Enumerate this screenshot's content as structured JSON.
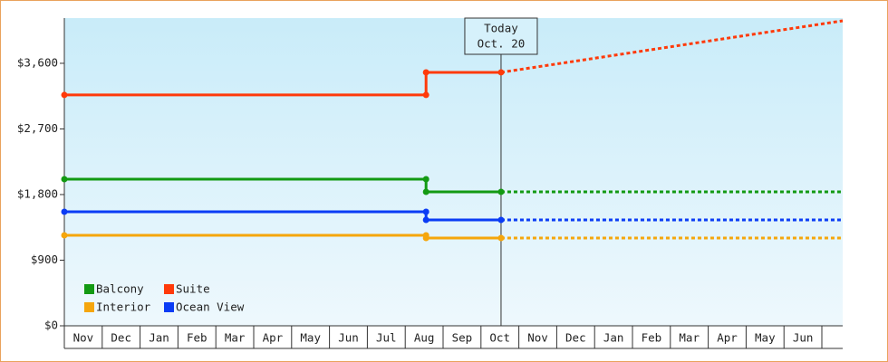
{
  "chart_data": {
    "type": "line",
    "categories": [
      "Nov",
      "Dec",
      "Jan",
      "Feb",
      "Mar",
      "Apr",
      "May",
      "Jun",
      "Jul",
      "Aug",
      "Sep",
      "Oct",
      "Nov",
      "Dec",
      "Jan",
      "Feb",
      "Mar",
      "Apr",
      "May",
      "Jun"
    ],
    "x": [
      0,
      9.55,
      9.55,
      11.53
    ],
    "projection_x": [
      11.53,
      20.55
    ],
    "xlim": [
      0,
      20.55
    ],
    "ylim": [
      0,
      4220
    ],
    "yticks": [
      {
        "value": 0,
        "label": "$0"
      },
      {
        "value": 900,
        "label": "$900"
      },
      {
        "value": 1800,
        "label": "$1,800"
      },
      {
        "value": 2700,
        "label": "$2,700"
      },
      {
        "value": 3600,
        "label": "$3,600"
      }
    ],
    "annotation": {
      "x": 11.53,
      "lines": [
        "Today",
        "Oct. 20"
      ]
    },
    "legend": "lower left",
    "series": [
      {
        "name": "Balcony",
        "color": "#139a13",
        "values": [
          2011,
          2011,
          1837,
          1837
        ],
        "projection": [
          1837,
          1837
        ]
      },
      {
        "name": "Suite",
        "color": "#ff3a0a",
        "values": [
          3166,
          3166,
          3476,
          3476
        ],
        "projection": [
          3476,
          4183
        ]
      },
      {
        "name": "Interior",
        "color": "#f5a60c",
        "values": [
          1241,
          1241,
          1204,
          1204
        ],
        "projection": [
          1204,
          1204
        ]
      },
      {
        "name": "Ocean View",
        "color": "#0a3cf5",
        "values": [
          1564,
          1564,
          1452,
          1452
        ],
        "projection": [
          1452,
          1452
        ]
      }
    ]
  }
}
